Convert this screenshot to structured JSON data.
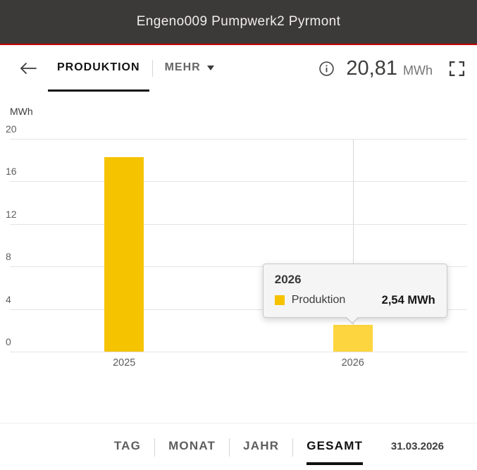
{
  "header": {
    "title": "Engeno009 Pumpwerk2 Pyrmont"
  },
  "icons": {
    "back": "arrow-left",
    "mehr_chevron": "chevron-down",
    "info": "info-circle",
    "fullscreen": "expand-corners"
  },
  "toolbar": {
    "produktion_label": "PRODUKTION",
    "mehr_label": "MEHR",
    "total_value": "20,81",
    "total_unit": "MWh"
  },
  "chart_data": {
    "type": "bar",
    "title": "",
    "ylabel": "MWh",
    "xlabel": "",
    "categories": [
      "2025",
      "2026"
    ],
    "series": [
      {
        "name": "Produktion",
        "values": [
          18.27,
          2.54
        ]
      }
    ],
    "ylim": [
      0,
      20
    ],
    "yticks": [
      0,
      4,
      8,
      12,
      16,
      20
    ],
    "grid": "horizontal",
    "legend": "none",
    "bar_color": "#f5c300",
    "bar_color_highlight": "#fdd53e",
    "highlight_category": "2026"
  },
  "tooltip": {
    "title": "2026",
    "series_label": "Produktion",
    "value": "2,54 MWh",
    "swatch_color": "#f5c300"
  },
  "footer": {
    "tabs": [
      "TAG",
      "MONAT",
      "JAHR",
      "GESAMT"
    ],
    "active_tab": "GESAMT",
    "date": "31.03.2026"
  }
}
